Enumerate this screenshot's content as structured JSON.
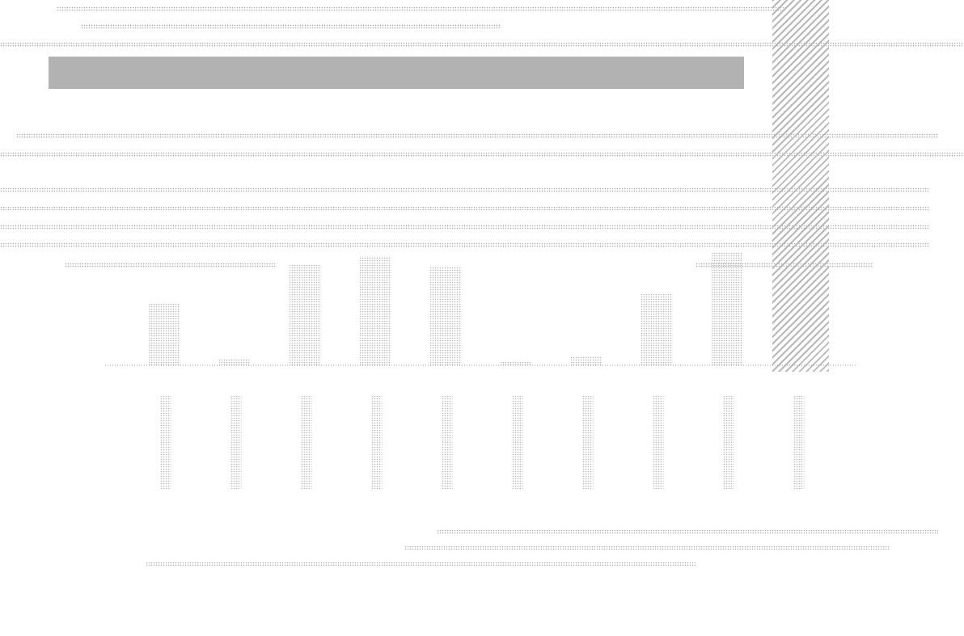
{
  "chart_data": {
    "type": "bar",
    "categories": [
      "",
      "",
      "",
      "",
      "",
      "",
      "",
      "",
      "",
      ""
    ],
    "values": [
      78,
      8,
      125,
      135,
      122,
      6,
      12,
      88,
      140,
      0
    ],
    "ylim": [
      0,
      160
    ],
    "grid": false,
    "title": "",
    "xlabel": "",
    "ylabel": ""
  },
  "colors": {
    "bar": "#b5b5b5",
    "axis": "#9a9a9a",
    "text": "#a0a0a0"
  }
}
